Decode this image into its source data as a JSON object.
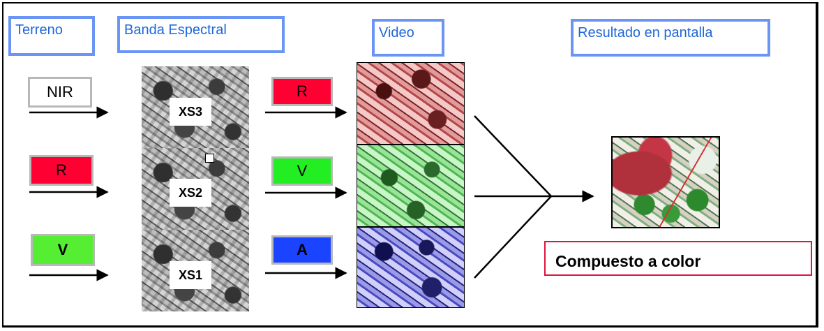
{
  "headers": {
    "terreno": "Terreno",
    "banda": "Banda Espectral",
    "video": "Video",
    "resultado": "Resultado en pantalla"
  },
  "terrain_labels": [
    {
      "text": "NIR",
      "color": "#ffffff"
    },
    {
      "text": "R",
      "color": "#ff0033"
    },
    {
      "text": "V",
      "color": "#55ee33"
    }
  ],
  "band_tiles": [
    "XS3",
    "XS2",
    "XS1"
  ],
  "video_labels": [
    {
      "text": "R",
      "color": "#ff0033"
    },
    {
      "text": "V",
      "color": "#22ee22"
    },
    {
      "text": "A",
      "color": "#1a44ff"
    }
  ],
  "video_tints": [
    "red",
    "green",
    "blue"
  ],
  "caption": "Compuesto a color",
  "colors": {
    "header_border": "#6a95f5",
    "header_text": "#1f67d8",
    "caption_border": "#e0143c"
  }
}
